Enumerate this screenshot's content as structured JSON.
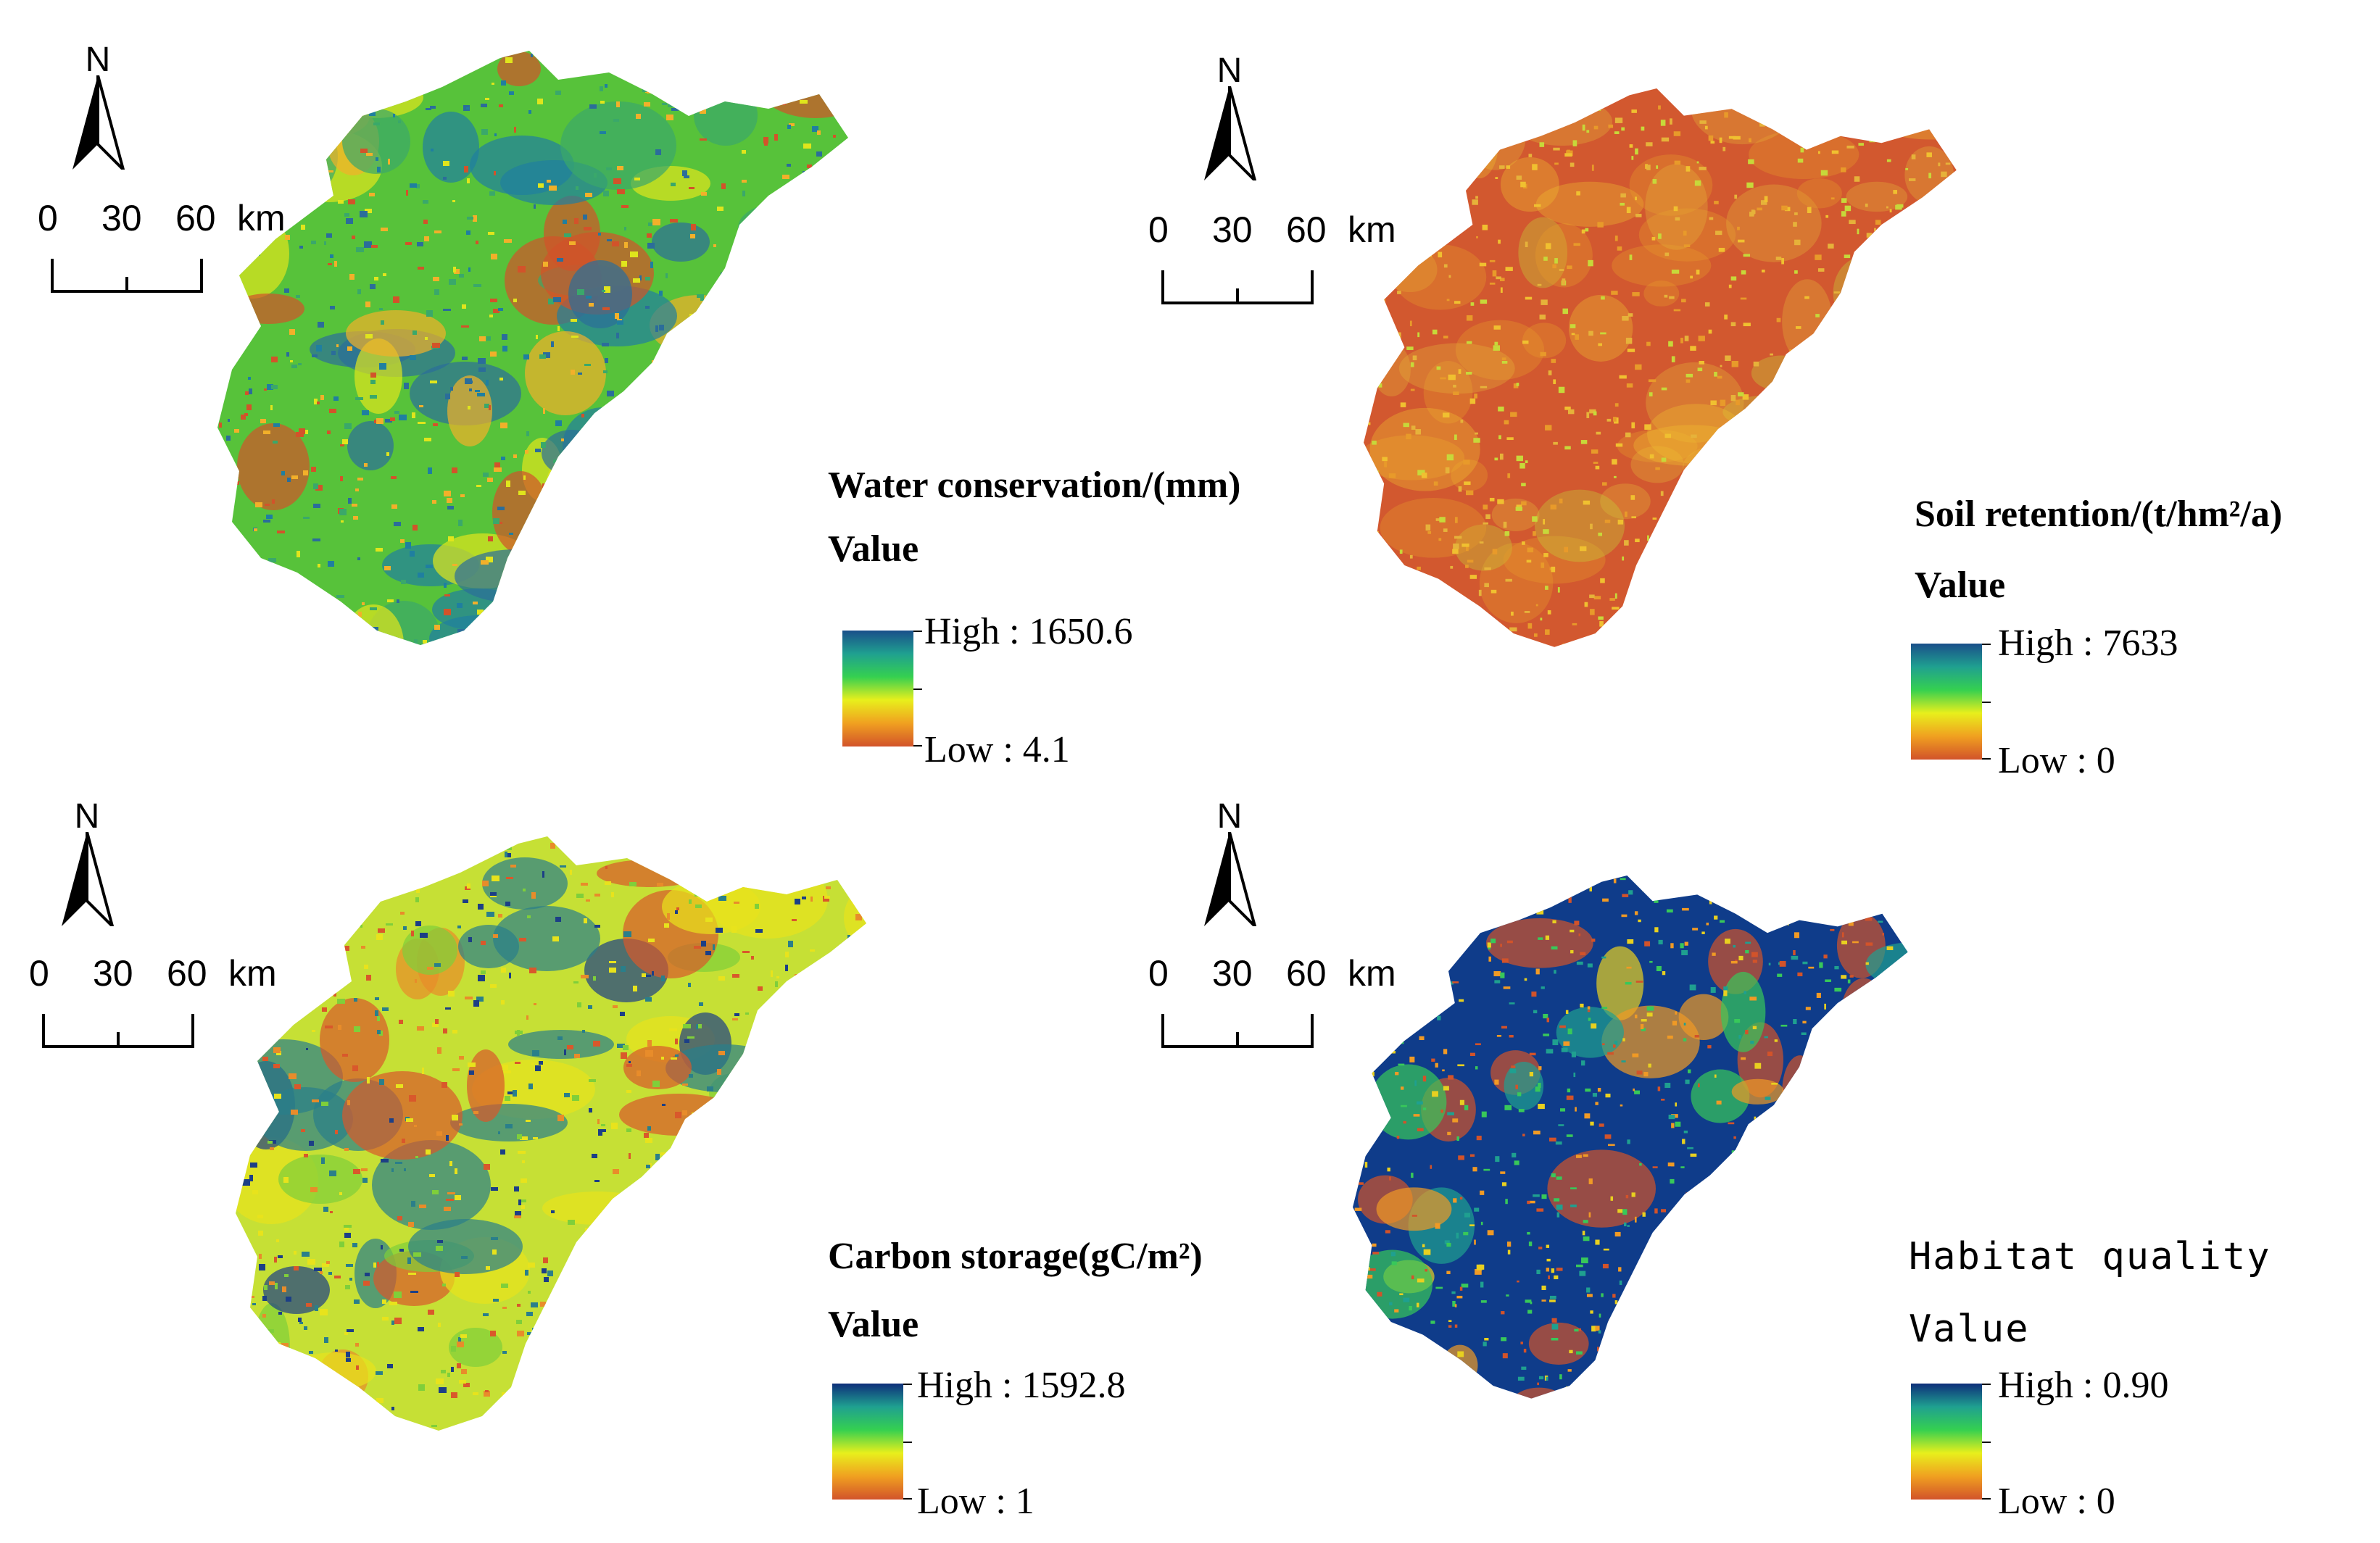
{
  "panels": [
    {
      "id": "water",
      "title": "Water conservation/(mm)",
      "value_label": "Value",
      "high": "High : 1650.6",
      "low": "Low : 4.1",
      "ramp": [
        "#1a4f8a",
        "#1fa090",
        "#35d050",
        "#e8ef1c",
        "#f0a020",
        "#d2532a"
      ],
      "base_color": "#57c23a",
      "speckle_colors": [
        "#1f7fa0",
        "#2b6d9a",
        "#e0e51c",
        "#f2b02a",
        "#d2532a",
        "#3aa86a"
      ]
    },
    {
      "id": "soil",
      "title": "Soil retention/(t/hm²/a)",
      "value_label": "Value",
      "high": "High : 7633",
      "low": "Low : 0",
      "ramp": [
        "#1a4f8a",
        "#1fa090",
        "#35d050",
        "#e8ef1c",
        "#f0a020",
        "#d2532a"
      ],
      "base_color": "#d2582f",
      "speckle_colors": [
        "#e89a2a",
        "#f0c030",
        "#c7d83a",
        "#e6b23a"
      ]
    },
    {
      "id": "carbon",
      "title": "Carbon storage(gC/m²)",
      "value_label": "Value",
      "high": "High : 1592.8",
      "low": "Low : 1",
      "ramp": [
        "#0e2f7a",
        "#1fa090",
        "#35d050",
        "#e8ef1c",
        "#f0a020",
        "#d2532a"
      ],
      "base_color": "#c6e035",
      "speckle_colors": [
        "#1c3f86",
        "#2a7f8a",
        "#e8e31c",
        "#e88c2a",
        "#7fcf3a",
        "#d9582b"
      ]
    },
    {
      "id": "habitat",
      "title": "Habitat quality",
      "value_label": "Value",
      "high": "High : 0.90",
      "low": "Low : 0",
      "ramp": [
        "#0e2f7a",
        "#1fa090",
        "#35d050",
        "#e8ef1c",
        "#f0a020",
        "#d2532a"
      ],
      "base_color": "#0f3c8a",
      "speckle_colors": [
        "#e8d020",
        "#f09a25",
        "#d2532a",
        "#38c85a",
        "#1fa090"
      ]
    }
  ],
  "north_arrow": {
    "letter": "N"
  },
  "scale_bar": {
    "labels": [
      "0",
      "30",
      "60"
    ],
    "unit": "km"
  }
}
